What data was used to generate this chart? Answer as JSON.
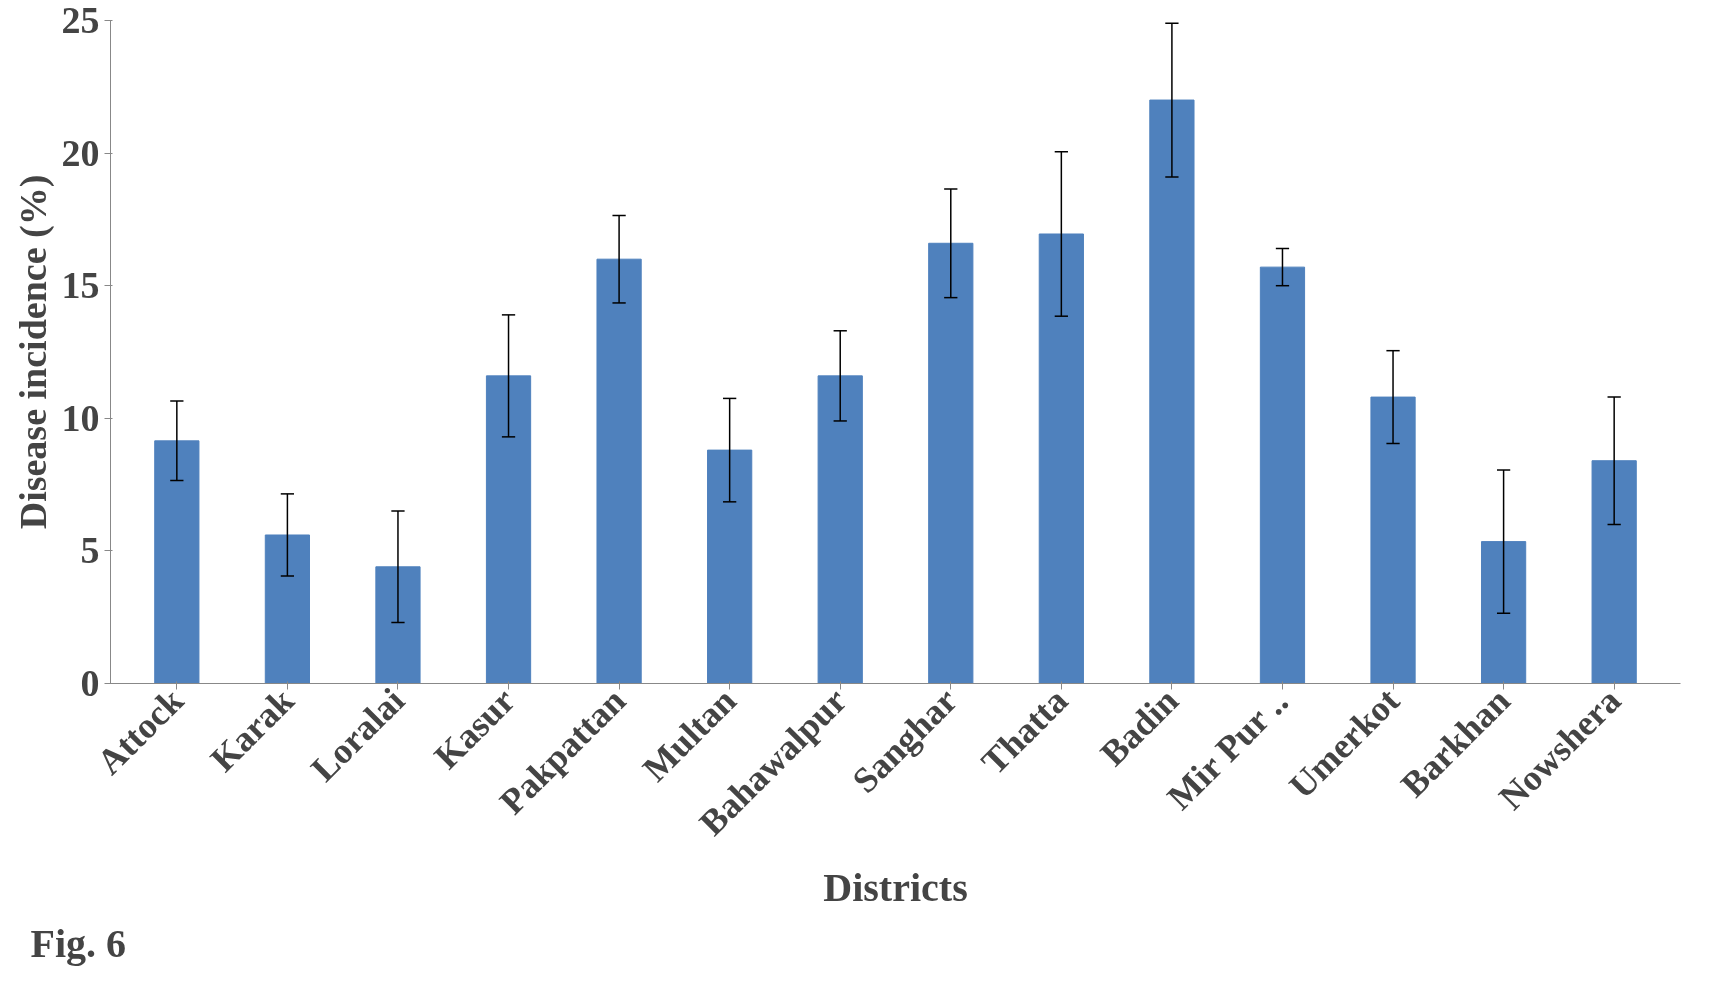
{
  "chart_data": {
    "type": "bar",
    "xlabel": "Districts",
    "ylabel": "Disease incidence (%)",
    "categories": [
      "Attock",
      "Karak",
      "Loralai",
      "Kasur",
      "Pakpattan",
      "Multan",
      "Bahawalpur",
      "Sanghar",
      "Thatta",
      "Badin",
      "Mir Pur ..",
      "Umerkot",
      "Barkhan",
      "Nowshera"
    ],
    "values": [
      9.15,
      5.6,
      4.4,
      11.6,
      16.0,
      8.8,
      11.6,
      16.6,
      16.95,
      22.0,
      15.7,
      10.8,
      5.35,
      8.4
    ],
    "errors": [
      1.5,
      1.55,
      2.1,
      2.3,
      1.65,
      1.95,
      1.7,
      2.05,
      3.1,
      2.9,
      0.7,
      1.75,
      2.7,
      2.4
    ],
    "color": "#4f81bd",
    "ylim": [
      0,
      25
    ],
    "yticks": [
      0,
      5,
      10,
      15,
      20,
      25
    ],
    "grid": false,
    "annotations": [
      "Fig. 6"
    ]
  }
}
